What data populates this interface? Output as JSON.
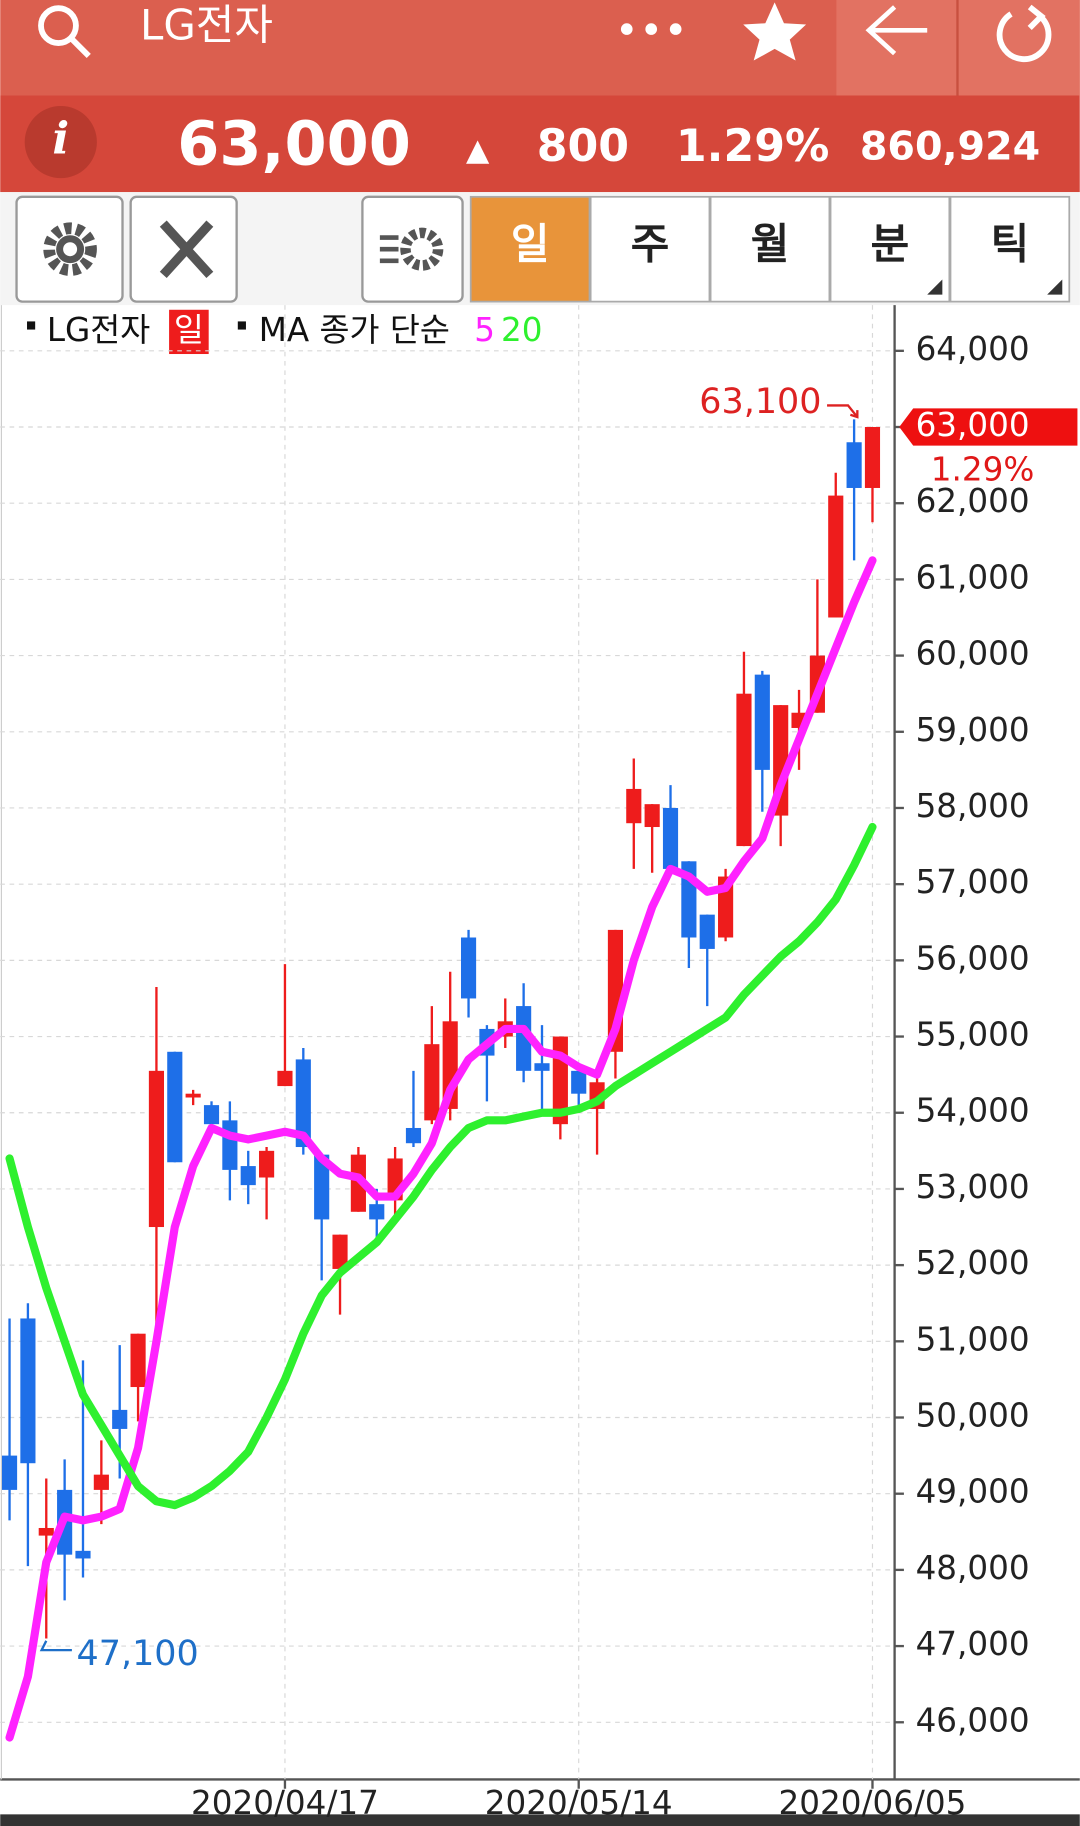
{
  "header": {
    "title": "LG전자"
  },
  "quote": {
    "price": "63,000",
    "arrow": "▲",
    "change": "800",
    "rate": "1.29%",
    "volume": "860,924"
  },
  "toolbar": {
    "tabs": [
      "일",
      "주",
      "월",
      "분",
      "틱"
    ]
  },
  "legend": {
    "symbol": "LG전자",
    "period": "일",
    "ma_label": "MA 종가 단순"
  },
  "chart_data": {
    "type": "candlestick",
    "categories": [
      null,
      null,
      null,
      null,
      null,
      null,
      null,
      null,
      null,
      null,
      null,
      null,
      null,
      null,
      null,
      "2020/04/17",
      null,
      null,
      null,
      null,
      null,
      null,
      null,
      null,
      null,
      null,
      null,
      null,
      null,
      null,
      null,
      "2020/05/14",
      null,
      null,
      null,
      null,
      null,
      null,
      null,
      null,
      null,
      null,
      null,
      null,
      null,
      null,
      null,
      "2020/06/05"
    ],
    "open": [
      49500,
      51300,
      48450,
      49050,
      48250,
      49050,
      50100,
      50400,
      52500,
      54800,
      54200,
      54100,
      53900,
      53300,
      53150,
      54350,
      54700,
      53450,
      51950,
      52700,
      52800,
      52850,
      53800,
      53900,
      54050,
      56300,
      55100,
      55000,
      55400,
      54650,
      53850,
      54550,
      54050,
      54800,
      57800,
      57750,
      58000,
      57300,
      56600,
      56300,
      57500,
      59750,
      57900,
      59050,
      59250,
      60500,
      62800,
      62200
    ],
    "high": [
      51300,
      51500,
      49200,
      49450,
      50750,
      49700,
      50950,
      51100,
      55650,
      54800,
      54300,
      54150,
      54150,
      53500,
      53550,
      55950,
      54850,
      53450,
      52400,
      53550,
      53000,
      53550,
      54550,
      55400,
      55850,
      56400,
      55150,
      55500,
      55700,
      55150,
      55000,
      54550,
      54550,
      56400,
      58650,
      58050,
      58300,
      57300,
      56600,
      57200,
      60050,
      59800,
      59350,
      59550,
      61000,
      62400,
      63100,
      63000
    ],
    "low": [
      48650,
      48050,
      47100,
      47600,
      47900,
      48600,
      49200,
      49950,
      50950,
      53350,
      54100,
      53800,
      52850,
      52800,
      52600,
      54350,
      53450,
      51800,
      51350,
      52700,
      52350,
      52550,
      53550,
      53850,
      53900,
      55250,
      54150,
      54850,
      54400,
      54000,
      53650,
      54000,
      53450,
      54450,
      57200,
      57150,
      57200,
      55900,
      55400,
      56250,
      57500,
      57950,
      57500,
      58500,
      59250,
      60500,
      61250,
      61750
    ],
    "close": [
      49050,
      49400,
      48550,
      48200,
      48150,
      49250,
      49850,
      51100,
      54550,
      53350,
      54250,
      53850,
      53250,
      53050,
      53500,
      54550,
      53550,
      52600,
      52400,
      53450,
      52600,
      53400,
      53600,
      54900,
      55200,
      55500,
      54750,
      55200,
      54550,
      54550,
      55000,
      54250,
      54400,
      56400,
      58250,
      58050,
      57200,
      56300,
      56150,
      57100,
      59500,
      58500,
      59350,
      59250,
      60000,
      62100,
      62200,
      63000
    ],
    "up_color": "#ee1c1c",
    "down_color": "#1e6fe8",
    "lines": [
      {
        "name": "5",
        "color": "#ff22ff",
        "values": [
          45800,
          46600,
          48100,
          48700,
          48650,
          48700,
          48800,
          49600,
          51000,
          52500,
          53300,
          53800,
          53700,
          53650,
          53700,
          53750,
          53700,
          53400,
          53200,
          53150,
          52900,
          52900,
          53200,
          53600,
          54300,
          54700,
          54900,
          55100,
          55100,
          54800,
          54750,
          54600,
          54500,
          55100,
          56000,
          56700,
          57200,
          57100,
          56900,
          56950,
          57300,
          57600,
          58300,
          58900,
          59500,
          60100,
          60700,
          61250
        ]
      },
      {
        "name": "20",
        "color": "#2ef02e",
        "values": [
          53400,
          52500,
          51700,
          51000,
          50300,
          49900,
          49500,
          49100,
          48900,
          48850,
          48950,
          49100,
          49300,
          49550,
          50000,
          50500,
          51100,
          51600,
          51900,
          52100,
          52300,
          52600,
          52900,
          53250,
          53550,
          53800,
          53900,
          53900,
          53950,
          54000,
          54000,
          54050,
          54150,
          54350,
          54500,
          54650,
          54800,
          54950,
          55100,
          55250,
          55550,
          55800,
          56050,
          56250,
          56500,
          56800,
          57250,
          57750
        ]
      }
    ],
    "ylim": [
      45250,
      64600
    ],
    "yticks": [
      {
        "value": 46000,
        "label": "46,000"
      },
      {
        "value": 47000,
        "label": "47,000"
      },
      {
        "value": 48000,
        "label": "48,000"
      },
      {
        "value": 49000,
        "label": "49,000"
      },
      {
        "value": 50000,
        "label": "50,000"
      },
      {
        "value": 51000,
        "label": "51,000"
      },
      {
        "value": 52000,
        "label": "52,000"
      },
      {
        "value": 53000,
        "label": "53,000"
      },
      {
        "value": 54000,
        "label": "54,000"
      },
      {
        "value": 55000,
        "label": "55,000"
      },
      {
        "value": 56000,
        "label": "56,000"
      },
      {
        "value": 57000,
        "label": "57,000"
      },
      {
        "value": 58000,
        "label": "58,000"
      },
      {
        "value": 59000,
        "label": "59,000"
      },
      {
        "value": 60000,
        "label": "60,000"
      },
      {
        "value": 61000,
        "label": "61,000"
      },
      {
        "value": 62000,
        "label": "62,000"
      },
      {
        "value": 63000,
        "label": "63,000"
      },
      {
        "value": 64000,
        "label": "64,000"
      }
    ],
    "grid": true,
    "high_annotation": {
      "value": 63100,
      "label": "63,100"
    },
    "low_annotation": {
      "value": 47100,
      "label": "47,100"
    },
    "last_price": {
      "value": 63000,
      "label": "63,000"
    },
    "last_rate": "1.29%"
  }
}
